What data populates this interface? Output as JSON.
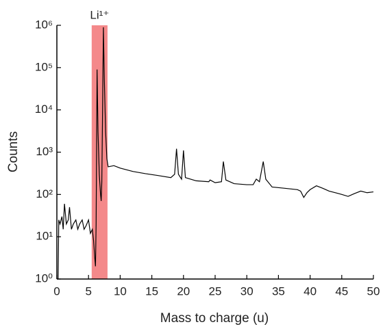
{
  "chart_data": {
    "type": "line",
    "x_label": "Mass to charge (u)",
    "y_label": "Counts",
    "log_y": true,
    "color": "#000000",
    "xlim": [
      0,
      50
    ],
    "xticks": [
      0,
      5,
      10,
      15,
      20,
      25,
      30,
      35,
      40,
      45,
      50
    ],
    "ylim": [
      1,
      1000000
    ],
    "yticks": [
      {
        "value": 1,
        "label": "10⁰"
      },
      {
        "value": 10,
        "label": "10¹"
      },
      {
        "value": 100,
        "label": "10²"
      },
      {
        "value": 1000,
        "label": "10³"
      },
      {
        "value": 10000,
        "label": "10⁴"
      },
      {
        "value": 100000,
        "label": "10⁵"
      },
      {
        "value": 1000000,
        "label": "10⁶"
      }
    ],
    "highlight": {
      "xlim": [
        5.5,
        8
      ],
      "color": "#f4898a",
      "label": "Li¹⁺"
    },
    "x": [
      0.2,
      0.3,
      0.5,
      0.8,
      1,
      1.2,
      1.5,
      1.8,
      2,
      2.3,
      2.6,
      3,
      3.3,
      3.6,
      4,
      4.3,
      4.6,
      5,
      5.3,
      5.6,
      5.8,
      6,
      6.1,
      6.2,
      6.35,
      6.5,
      6.7,
      6.9,
      7.0,
      7.1,
      7.2,
      7.35,
      7.5,
      7.7,
      7.9,
      8.1,
      9,
      10,
      12,
      14,
      16,
      18,
      18.6,
      18.9,
      19.2,
      19.7,
      20,
      20.3,
      22,
      24,
      24.2,
      25,
      26,
      26.3,
      26.7,
      28,
      30,
      31,
      31.5,
      32,
      32.6,
      33,
      34,
      36,
      38,
      38.5,
      39,
      39.5,
      40,
      41,
      42,
      43,
      44,
      45,
      46,
      47,
      48,
      49,
      50
    ],
    "values": [
      1,
      25,
      20,
      30,
      15,
      60,
      20,
      25,
      50,
      15,
      20,
      25,
      15,
      20,
      25,
      15,
      18,
      25,
      12,
      15,
      8,
      3,
      2,
      20,
      90000,
      3000,
      300,
      100,
      70,
      200,
      5000,
      900000,
      50000,
      3000,
      700,
      450,
      480,
      420,
      350,
      310,
      280,
      250,
      300,
      1200,
      300,
      230,
      1100,
      250,
      210,
      200,
      220,
      190,
      200,
      600,
      220,
      180,
      170,
      170,
      230,
      200,
      600,
      230,
      150,
      140,
      130,
      120,
      85,
      110,
      130,
      160,
      140,
      120,
      110,
      100,
      90,
      105,
      120,
      110,
      115
    ]
  }
}
